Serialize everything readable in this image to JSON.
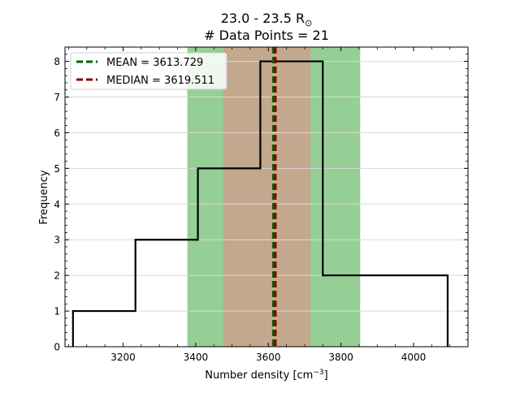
{
  "chart_data": {
    "type": "histogram",
    "title_line1": "23.0 - 23.5 R",
    "title_sun_symbol": "⊙",
    "title_line2": "# Data Points = 21",
    "xlabel": "Number density [cm",
    "xlabel_exp": "−3",
    "xlabel_close": "]",
    "ylabel": "Frequency",
    "xlim": [
      3040,
      4150
    ],
    "ylim": [
      0,
      8.4
    ],
    "xticks": [
      3200,
      3400,
      3600,
      3800,
      4000
    ],
    "yticks": [
      0,
      1,
      2,
      3,
      4,
      5,
      6,
      7,
      8
    ],
    "bin_edges": [
      3062,
      3234,
      3406,
      3578,
      3750,
      3922,
      4094
    ],
    "counts": [
      1,
      3,
      5,
      8,
      2,
      2
    ],
    "mean": 3613.729,
    "median": 3619.511,
    "bands": [
      {
        "name": "outer",
        "x0": 3377,
        "x1": 3853,
        "color": "#96cf96"
      },
      {
        "name": "inner",
        "x0": 3476,
        "x1": 3716,
        "color": "#c3a88d"
      }
    ],
    "grid": "horizontal",
    "legend_position": "upper left",
    "legend": [
      {
        "label": "MEAN = 3613.729",
        "color": "#006400"
      },
      {
        "label": "MEDIAN = 3619.511",
        "color": "#8b0000"
      }
    ],
    "colors": {
      "step": "#000000",
      "mean_line": "#006400",
      "median_line": "#8b0000",
      "grid": "#d9d9d9"
    }
  }
}
